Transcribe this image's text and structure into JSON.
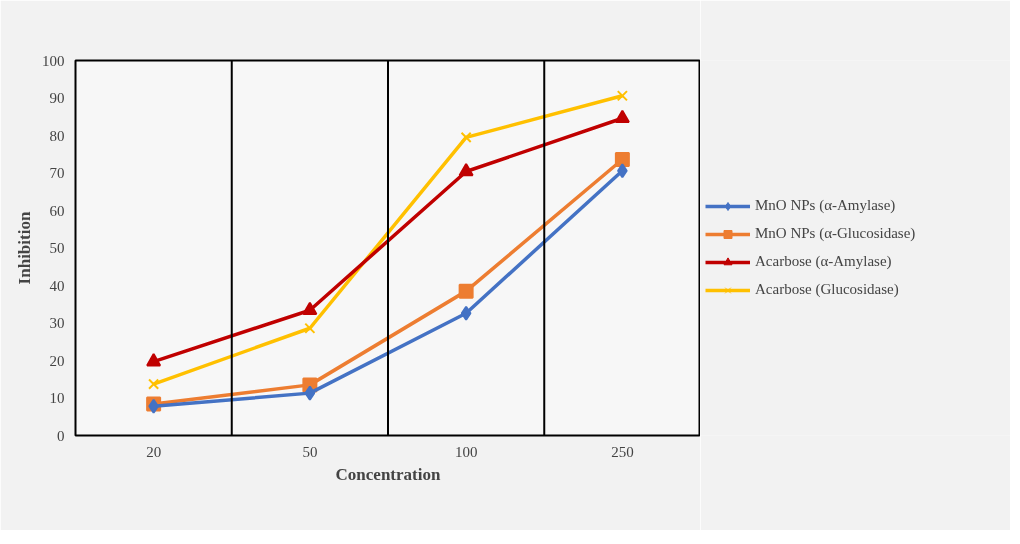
{
  "chart_data": {
    "type": "line",
    "xlabel": "Concentration",
    "ylabel": "Inhibition",
    "categories": [
      "20",
      "50",
      "100",
      "250"
    ],
    "ylim": [
      0,
      100
    ],
    "yticks": [
      0,
      10,
      20,
      30,
      40,
      50,
      60,
      70,
      80,
      90,
      100
    ],
    "grid": "x",
    "legend": "right",
    "series": [
      {
        "name": "MnO NPs (α-Amylase)",
        "color": "#4472c4",
        "marker": "diamond",
        "values": [
          7.8,
          11.3,
          32.6,
          70.6
        ]
      },
      {
        "name": "MnO NPs (α-Glucosidase)",
        "color": "#ed7d31",
        "marker": "square",
        "values": [
          8.4,
          13.5,
          38.5,
          73.6
        ]
      },
      {
        "name": "Acarbose (α-Amylase)",
        "color": "#c00000",
        "marker": "triangle",
        "values": [
          19.7,
          33.4,
          70.4,
          84.6
        ]
      },
      {
        "name": "Acarbose (Glucosidase)",
        "color": "#ffc000",
        "marker": "cross",
        "values": [
          13.7,
          28.6,
          79.5,
          90.6
        ]
      }
    ]
  }
}
